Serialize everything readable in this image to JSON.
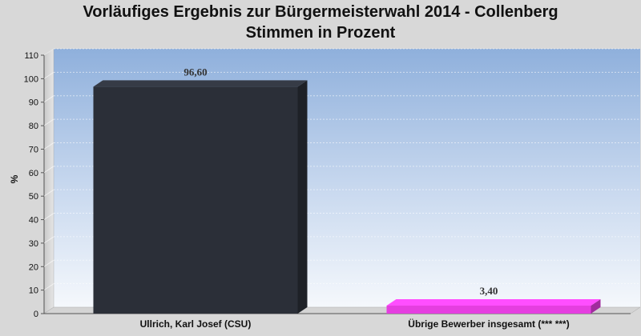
{
  "chart_data": {
    "type": "bar",
    "title": "Vorläufiges Ergebnis zur Bürgermeisterwahl 2014 - Collenberg",
    "subtitle": "Stimmen in Prozent",
    "ylabel": "%",
    "xlabel": "",
    "ylim": [
      0,
      110
    ],
    "yticks": [
      0,
      10,
      20,
      30,
      40,
      50,
      60,
      70,
      80,
      90,
      100,
      110
    ],
    "categories": [
      "Ullrich, Karl Josef (CSU)",
      "Übrige Bewerber insgesamt (***  ***)"
    ],
    "values": [
      96.6,
      3.4
    ],
    "value_labels": [
      "96,60",
      "3,40"
    ],
    "colors": [
      "#2b2f38",
      "#e53ee0"
    ],
    "grid": true,
    "legend": "none"
  }
}
